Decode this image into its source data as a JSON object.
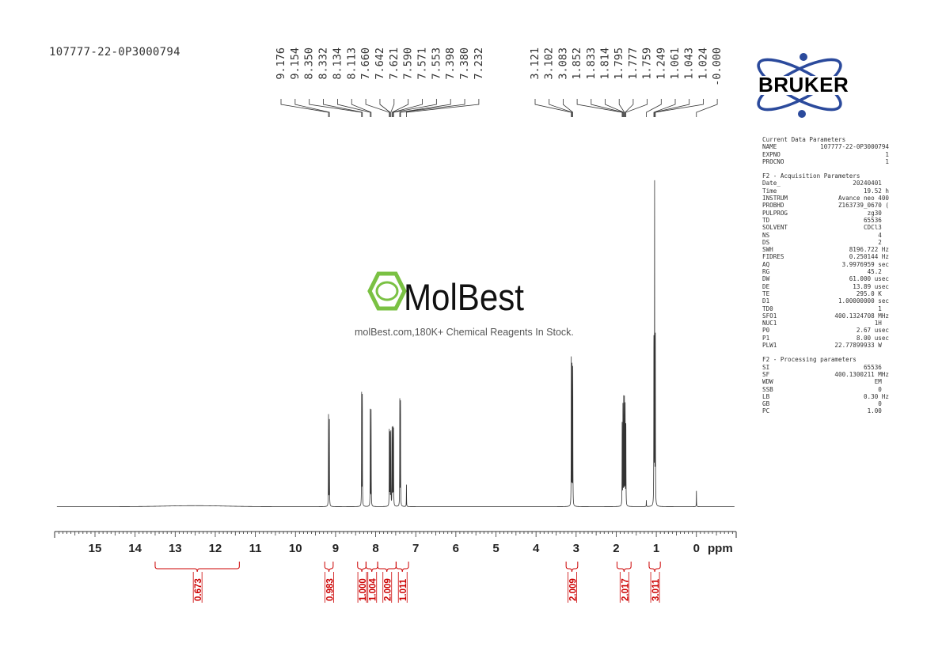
{
  "sample_id": "107777-22-0P3000794",
  "brand_logo": {
    "text": "BRUKER",
    "accent": "#2b4a9c"
  },
  "watermark": {
    "name": "MolBest",
    "tagline": "molBest.com,180K+ Chemical Reagents In Stock.",
    "color": "#7ac143"
  },
  "chart_data": {
    "type": "line",
    "title": "",
    "xlabel": "ppm",
    "ylabel": "",
    "xlim": [
      16,
      -1
    ],
    "x_direction": "reversed",
    "grid": false,
    "x_ticks": [
      "15",
      "14",
      "13",
      "12",
      "11",
      "10",
      "9",
      "8",
      "7",
      "6",
      "5",
      "4",
      "3",
      "2",
      "1",
      "0"
    ],
    "peak_labels_group1": [
      "9.176",
      "9.154",
      "8.350",
      "8.332",
      "8.134",
      "8.113",
      "7.660",
      "7.642",
      "7.621",
      "7.590",
      "7.571",
      "7.553",
      "7.398",
      "7.380",
      "7.232"
    ],
    "peak_labels_group2": [
      "3.121",
      "3.102",
      "3.083",
      "1.852",
      "1.833",
      "1.814",
      "1.795",
      "1.777",
      "1.759",
      "1.249",
      "1.061",
      "1.043",
      "1.024",
      "-0.000"
    ],
    "peaks": [
      {
        "ppm": 9.176,
        "height": 0.29
      },
      {
        "ppm": 9.154,
        "height": 0.29
      },
      {
        "ppm": 8.35,
        "height": 0.35
      },
      {
        "ppm": 8.332,
        "height": 0.35
      },
      {
        "ppm": 8.134,
        "height": 0.3
      },
      {
        "ppm": 8.113,
        "height": 0.3
      },
      {
        "ppm": 7.66,
        "height": 0.24
      },
      {
        "ppm": 7.642,
        "height": 0.24
      },
      {
        "ppm": 7.621,
        "height": 0.24
      },
      {
        "ppm": 7.59,
        "height": 0.24
      },
      {
        "ppm": 7.571,
        "height": 0.24
      },
      {
        "ppm": 7.553,
        "height": 0.24
      },
      {
        "ppm": 7.398,
        "height": 0.33
      },
      {
        "ppm": 7.38,
        "height": 0.33
      },
      {
        "ppm": 7.232,
        "height": 0.07
      },
      {
        "ppm": 3.121,
        "height": 0.46
      },
      {
        "ppm": 3.102,
        "height": 0.43
      },
      {
        "ppm": 3.083,
        "height": 0.43
      },
      {
        "ppm": 1.852,
        "height": 0.26
      },
      {
        "ppm": 1.833,
        "height": 0.31
      },
      {
        "ppm": 1.814,
        "height": 0.33
      },
      {
        "ppm": 1.795,
        "height": 0.33
      },
      {
        "ppm": 1.777,
        "height": 0.31
      },
      {
        "ppm": 1.759,
        "height": 0.26
      },
      {
        "ppm": 1.249,
        "height": 0.02
      },
      {
        "ppm": 1.061,
        "height": 0.53
      },
      {
        "ppm": 1.043,
        "height": 1.0
      },
      {
        "ppm": 1.024,
        "height": 0.53
      },
      {
        "ppm": -0.0,
        "height": 0.05
      }
    ],
    "integrals": [
      {
        "from": 13.5,
        "to": 11.4,
        "value": "0.673"
      },
      {
        "from": 9.27,
        "to": 9.06,
        "value": "0.983"
      },
      {
        "from": 8.45,
        "to": 8.24,
        "value": "1.000"
      },
      {
        "from": 8.24,
        "to": 7.95,
        "value": "1.004"
      },
      {
        "from": 7.95,
        "to": 7.49,
        "value": "2.009"
      },
      {
        "from": 7.49,
        "to": 7.18,
        "value": "1.011"
      },
      {
        "from": 3.25,
        "to": 2.96,
        "value": "2.009"
      },
      {
        "from": 1.98,
        "to": 1.63,
        "value": "2.017"
      },
      {
        "from": 1.18,
        "to": 0.9,
        "value": "3.011"
      }
    ],
    "integral_color": "#cc0000"
  },
  "parameters": {
    "current_title": "Current Data Parameters",
    "current": [
      [
        "NAME",
        "107777-22-0P3000794"
      ],
      [
        "EXPNO",
        "1"
      ],
      [
        "PROCNO",
        "1"
      ]
    ],
    "acq_title": "F2 - Acquisition Parameters",
    "acq": [
      [
        "Date_",
        "20240401  "
      ],
      [
        "Time",
        "19.52 h"
      ],
      [
        "INSTRUM",
        "Avance neo 400"
      ],
      [
        "PROBHD",
        "Z163739_0670 ("
      ],
      [
        "PULPROG",
        "zg30  "
      ],
      [
        "TD",
        "65536  "
      ],
      [
        "SOLVENT",
        "CDCl3  "
      ],
      [
        "NS",
        "4  "
      ],
      [
        "DS",
        "2  "
      ],
      [
        "SWH",
        "8196.722 Hz"
      ],
      [
        "FIDRES",
        "0.250144 Hz"
      ],
      [
        "AQ",
        "3.9976959 sec"
      ],
      [
        "RG",
        "45.2  "
      ],
      [
        "DW",
        "61.000 usec"
      ],
      [
        "DE",
        "13.89 usec"
      ],
      [
        "TE",
        "295.0 K  "
      ],
      [
        "D1",
        "1.00000000 sec"
      ],
      [
        "TD0",
        "1  "
      ],
      [
        "SFO1",
        "400.1324708 MHz"
      ],
      [
        "NUC1",
        "1H  "
      ],
      [
        "P0",
        "2.67 usec"
      ],
      [
        "P1",
        "8.00 usec"
      ],
      [
        "PLW1",
        "22.77899933 W  "
      ]
    ],
    "proc_title": "F2 - Processing parameters",
    "proc": [
      [
        "SI",
        "65536  "
      ],
      [
        "SF",
        "400.1300211 MHz"
      ],
      [
        "WDW",
        "EM  "
      ],
      [
        "SSB",
        "0  "
      ],
      [
        "LB",
        "0.30 Hz"
      ],
      [
        "GB",
        "0  "
      ],
      [
        "PC",
        "1.00  "
      ]
    ]
  }
}
